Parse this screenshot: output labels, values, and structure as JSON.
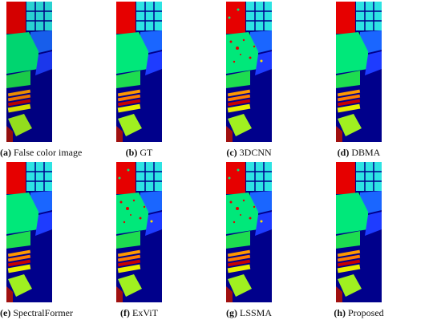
{
  "panels": [
    {
      "tag": "(a)",
      "caption": "False color image"
    },
    {
      "tag": "(b)",
      "caption": "GT"
    },
    {
      "tag": "(c)",
      "caption": "3DCNN"
    },
    {
      "tag": "(d)",
      "caption": "DBMA"
    },
    {
      "tag": "(e)",
      "caption": "SpectralFormer"
    },
    {
      "tag": "(f)",
      "caption": "ExViT"
    },
    {
      "tag": "(g)",
      "caption": "LSSMA"
    },
    {
      "tag": "(h)",
      "caption": "Proposed"
    }
  ]
}
